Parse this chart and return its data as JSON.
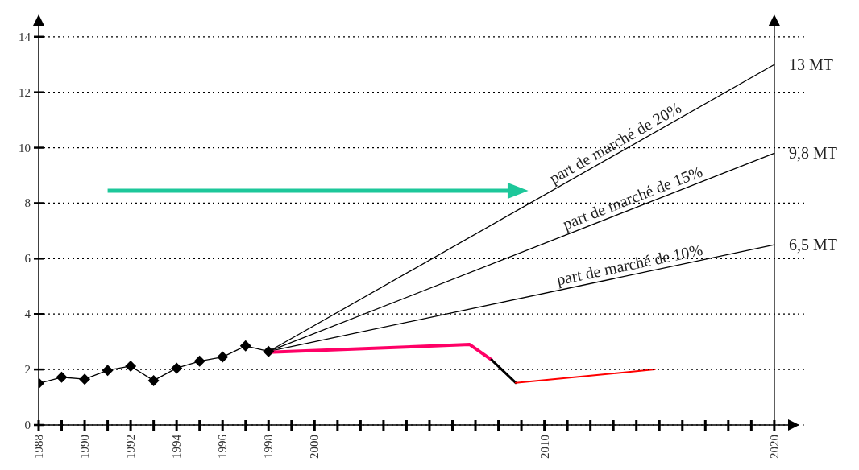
{
  "chart_data": {
    "type": "line",
    "xlim": [
      1988,
      2020.6
    ],
    "ylim": [
      0,
      14.4
    ],
    "xticks": [
      1988,
      {
        "value": 1989,
        "label": null
      },
      1990,
      {
        "value": 1991,
        "label": null
      },
      1992,
      {
        "value": 1993,
        "label": null
      },
      1994,
      {
        "value": 1995,
        "label": null
      },
      1996,
      {
        "value": 1997,
        "label": null
      },
      1998,
      {
        "value": 1999,
        "label": null
      },
      2000,
      {
        "value": 2001,
        "label": null
      },
      {
        "value": 2002,
        "label": null
      },
      {
        "value": 2003,
        "label": null
      },
      {
        "value": 2004,
        "label": null
      },
      {
        "value": 2005,
        "label": null
      },
      {
        "value": 2006,
        "label": null
      },
      {
        "value": 2007,
        "label": null
      },
      {
        "value": 2008,
        "label": null
      },
      {
        "value": 2009,
        "label": null
      },
      2010,
      {
        "value": 2011,
        "label": null
      },
      {
        "value": 2012,
        "label": null
      },
      {
        "value": 2013,
        "label": null
      },
      {
        "value": 2014,
        "label": null
      },
      {
        "value": 2015,
        "label": null
      },
      {
        "value": 2016,
        "label": null
      },
      {
        "value": 2017,
        "label": null
      },
      {
        "value": 2018,
        "label": null
      },
      {
        "value": 2019,
        "label": null
      },
      2020
    ],
    "yticks": [
      0,
      2,
      4,
      6,
      8,
      10,
      12,
      14
    ],
    "grid": "y",
    "line_style": "solid",
    "series": [
      {
        "color": "#000000",
        "marker": "diamond",
        "x": [
          1988,
          1989,
          1990,
          1991,
          1992,
          1993,
          1994,
          1995,
          1996,
          1997,
          1998
        ],
        "values": [
          1.5,
          1.72,
          1.65,
          1.97,
          2.12,
          1.6,
          2.05,
          2.3,
          2.45,
          2.85,
          2.65
        ]
      },
      {
        "color": "#000000",
        "marker": "none",
        "x": [
          1998,
          2020
        ],
        "values": [
          2.65,
          13
        ]
      },
      {
        "color": "#000000",
        "marker": "none",
        "x": [
          1998,
          2020
        ],
        "values": [
          2.65,
          9.8
        ]
      },
      {
        "color": "#000000",
        "marker": "none",
        "x": [
          1998,
          2020
        ],
        "values": [
          2.65,
          6.5
        ]
      },
      {
        "color": "#ff0066",
        "marker": "none",
        "x": [
          1998,
          2006.75,
          2007.7
        ],
        "values": [
          2.62,
          2.9,
          2.35
        ]
      },
      {
        "color": "#000000",
        "marker": "none",
        "x": [
          2007.7,
          2008.75
        ],
        "values": [
          2.35,
          1.52
        ]
      },
      {
        "color": "#ff0000",
        "marker": "none",
        "x": [
          2008.75,
          2014.8
        ],
        "values": [
          1.52,
          2.0
        ]
      }
    ],
    "ref_lines": [
      {
        "axis": "x",
        "value": 2020,
        "color": "#000000"
      }
    ],
    "annotations": [
      {
        "text": "13 MT",
        "x": 2020,
        "y": 13
      },
      {
        "text": "9,8 MT",
        "x": 2020,
        "y": 9.8
      },
      {
        "text": "6,5 MT",
        "x": 2020,
        "y": 6.5
      },
      {
        "text": "part de marché de 20%",
        "x": 2013.3,
        "y": 9.85
      },
      {
        "text": "part de marché de 15%",
        "x": 2014,
        "y": 7.85
      },
      {
        "text": "part de marché de 10%",
        "x": 2013.8,
        "y": 5.42
      }
    ]
  }
}
